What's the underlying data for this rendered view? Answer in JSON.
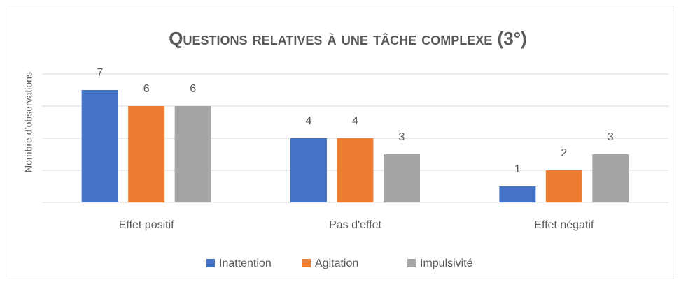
{
  "chart_data": {
    "type": "bar",
    "title": "Questions relatives à une tâche complexe (3°)",
    "y_label": "Nombre d’observations",
    "categories": [
      "Effet positif",
      "Pas d'effet",
      "Effet négatif"
    ],
    "series": [
      {
        "name": "Inattention",
        "color": "#4472c4",
        "values": [
          7,
          4,
          1
        ]
      },
      {
        "name": "Agitation",
        "color": "#ed7d31",
        "values": [
          6,
          4,
          2
        ]
      },
      {
        "name": "Impulsivité",
        "color": "#a5a5a5",
        "values": [
          6,
          3,
          3
        ]
      }
    ],
    "ylim": [
      0,
      8
    ],
    "yticks": [
      0,
      2,
      4,
      6,
      8
    ],
    "grid": true,
    "legend": "bottom"
  }
}
